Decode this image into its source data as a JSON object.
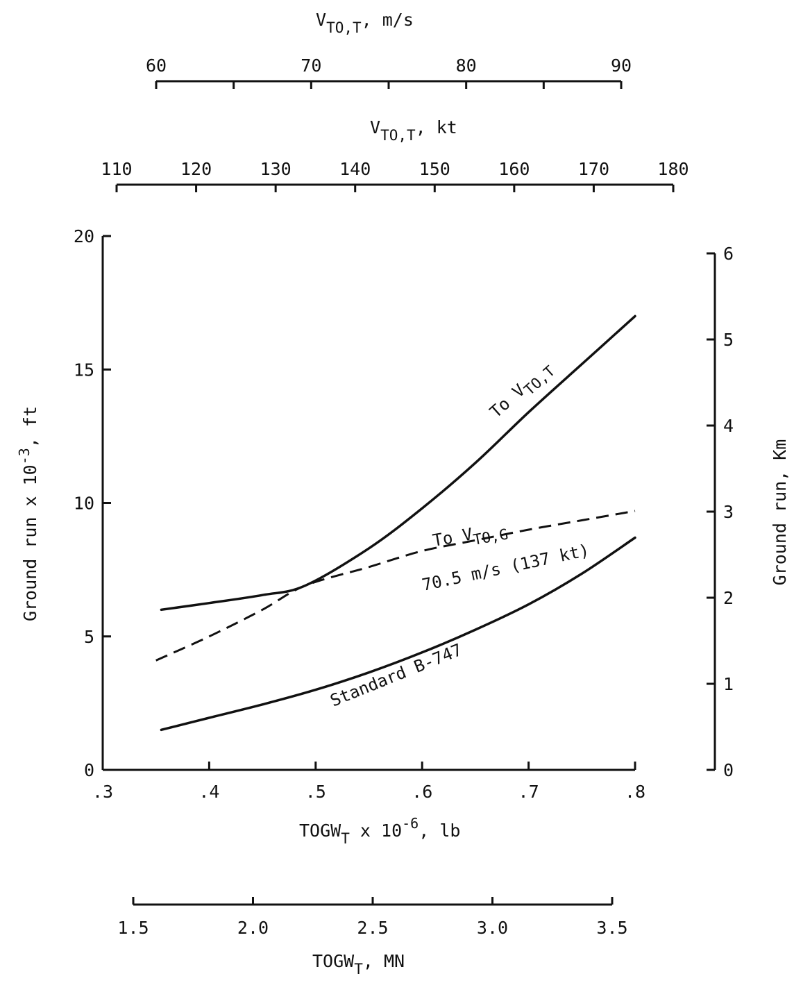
{
  "chart_data": {
    "type": "line",
    "x": {
      "label": "TOGW",
      "label_sub": "T",
      "label_suffix": " x 10",
      "label_exp": "-6",
      "label_unit": ", lb",
      "range": [
        0.3,
        0.8
      ],
      "ticks": [
        0.3,
        0.4,
        0.5,
        0.6,
        0.7,
        0.8
      ],
      "tick_labels": [
        ".3",
        ".4",
        ".5",
        ".6",
        ".7",
        ".8"
      ]
    },
    "x_mn": {
      "label": "TOGW",
      "label_sub": "T",
      "label_unit": ", MN",
      "range": [
        1.5,
        3.5
      ],
      "ticks": [
        1.5,
        2.0,
        2.5,
        3.0,
        3.5
      ],
      "tick_labels": [
        "1.5",
        "2.0",
        "2.5",
        "3.0",
        "3.5"
      ]
    },
    "y_left": {
      "label": "Ground run x 10",
      "label_exp": "-3",
      "label_unit": ", ft",
      "range": [
        0,
        20
      ],
      "ticks": [
        0,
        5,
        10,
        15,
        20
      ],
      "tick_labels": [
        "0",
        "5",
        "10",
        "15",
        "20"
      ]
    },
    "y_right": {
      "label": "Ground run, Km",
      "range": [
        0,
        6
      ],
      "ticks": [
        0,
        1,
        2,
        3,
        4,
        5,
        6
      ],
      "tick_labels": [
        "0",
        "1",
        "2",
        "3",
        "4",
        "5",
        "6"
      ]
    },
    "top_ms": {
      "label": "V",
      "label_sub": "TO,T",
      "label_unit": ", m/s",
      "range": [
        60,
        90
      ],
      "ticks": [
        60,
        65,
        70,
        75,
        80,
        85,
        90
      ],
      "tick_labels": [
        "60",
        "70",
        "80",
        "90"
      ],
      "labeled_ticks": [
        60,
        70,
        80,
        90
      ]
    },
    "top_kt": {
      "label": "V",
      "label_sub": "TO,T",
      "label_unit": ", kt",
      "range": [
        110,
        180
      ],
      "ticks": [
        110,
        120,
        130,
        140,
        150,
        160,
        170,
        180
      ],
      "tick_labels": [
        "110",
        "120",
        "130",
        "140",
        "150",
        "160",
        "170",
        "180"
      ]
    },
    "series": [
      {
        "style": "solid",
        "points": [
          [
            0.355,
            6.0
          ],
          [
            0.4,
            6.25
          ],
          [
            0.45,
            6.55
          ],
          [
            0.49,
            6.9
          ],
          [
            0.55,
            8.3
          ],
          [
            0.6,
            9.8
          ],
          [
            0.65,
            11.5
          ],
          [
            0.7,
            13.4
          ],
          [
            0.75,
            15.2
          ],
          [
            0.8,
            17.0
          ]
        ]
      },
      {
        "style": "dashed",
        "points": [
          [
            0.35,
            4.1
          ],
          [
            0.4,
            5.0
          ],
          [
            0.45,
            6.0
          ],
          [
            0.49,
            6.9
          ],
          [
            0.55,
            7.6
          ],
          [
            0.6,
            8.2
          ],
          [
            0.65,
            8.6
          ],
          [
            0.7,
            9.0
          ],
          [
            0.75,
            9.35
          ],
          [
            0.8,
            9.7
          ]
        ]
      },
      {
        "style": "solid",
        "points": [
          [
            0.355,
            1.5
          ],
          [
            0.4,
            1.95
          ],
          [
            0.45,
            2.45
          ],
          [
            0.5,
            3.0
          ],
          [
            0.55,
            3.65
          ],
          [
            0.6,
            4.4
          ],
          [
            0.65,
            5.25
          ],
          [
            0.7,
            6.2
          ],
          [
            0.75,
            7.35
          ],
          [
            0.8,
            8.7
          ]
        ]
      }
    ],
    "annotations": {
      "to_vtot": "To V",
      "to_vtot_sub": "TO,T",
      "to_vtog": "To V",
      "to_vtog_sub": "TO,G",
      "speed": "70.5 m/s (137 kt)",
      "standard": "Standard B-747"
    }
  }
}
